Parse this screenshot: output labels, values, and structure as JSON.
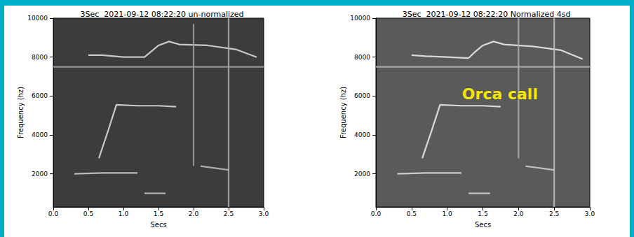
{
  "chart_data": [
    {
      "type": "line",
      "title": "3Sec  2021-09-12 08:22:20 un-normalized",
      "xlabel": "Secs",
      "ylabel": "Frequency (hz)",
      "xlim": [
        0,
        3
      ],
      "ylim": [
        300,
        10000
      ],
      "xticks": [
        {
          "value": 0,
          "label": "0.0"
        },
        0.5,
        {
          "value": 1,
          "label": "1.0"
        },
        1.5,
        {
          "value": 2,
          "label": "2.0"
        },
        2.5,
        {
          "value": 3,
          "label": "3.0"
        }
      ],
      "yticks": [
        2000,
        4000,
        6000,
        8000,
        10000
      ],
      "grid": false,
      "series": [
        {
          "color": "#e0e0e0",
          "line_style": "solid",
          "x": [
            0.5,
            0.7,
            1.0,
            1.3,
            1.4,
            1.5,
            1.65,
            1.8,
            2.2,
            2.6,
            2.9
          ],
          "values": [
            8100,
            8100,
            8000,
            8000,
            8300,
            8600,
            8800,
            8650,
            8600,
            8400,
            8000
          ]
        },
        {
          "color": "#e0e0e0",
          "line_style": "solid",
          "x": [
            0.65,
            0.78,
            0.9,
            1.2,
            1.5,
            1.75
          ],
          "values": [
            2800,
            4200,
            5550,
            5500,
            5500,
            5450
          ]
        },
        {
          "color": "#d0d0d0",
          "line_style": "solid",
          "x": [
            0.3,
            0.7,
            1.2
          ],
          "values": [
            2000,
            2050,
            2050
          ]
        },
        {
          "color": "#c8c8c8",
          "line_style": "solid",
          "x": [
            1.3,
            1.6
          ],
          "values": [
            1000,
            1000
          ]
        },
        {
          "color": "#c0c0c0",
          "line_style": "solid",
          "x": [
            2.1,
            2.3,
            2.5
          ],
          "values": [
            2400,
            2300,
            2200
          ]
        },
        {
          "color": "#a0a0a0",
          "line_style": "solid",
          "x": [
            0,
            3
          ],
          "values": [
            7500,
            7500
          ]
        },
        {
          "color": "#a0a0a0",
          "line_style": "solid",
          "x": [
            2,
            2
          ],
          "values": [
            2400,
            9700
          ]
        },
        {
          "color": "#b0b0b0",
          "line_style": "solid",
          "x": [
            2.5,
            2.5
          ],
          "values": [
            300,
            10000
          ]
        }
      ]
    },
    {
      "type": "line",
      "title": "3Sec  2021-09-12 08:22:20 Normalized 4sd",
      "xlabel": "Secs",
      "ylabel": "Frequency (hz)",
      "xlim": [
        0,
        3
      ],
      "ylim": [
        300,
        10000
      ],
      "xticks": [
        {
          "value": 0,
          "label": "0.0"
        },
        0.5,
        {
          "value": 1,
          "label": "1.0"
        },
        1.5,
        {
          "value": 2,
          "label": "2.0"
        },
        2.5,
        {
          "value": 3,
          "label": "3.0"
        }
      ],
      "yticks": [
        2000,
        4000,
        6000,
        8000,
        10000
      ],
      "grid": false,
      "annotations": [
        "Orca call"
      ],
      "series": [
        {
          "color": "#f0f0f0",
          "line_style": "solid",
          "x": [
            0.5,
            0.7,
            1.0,
            1.3,
            1.4,
            1.5,
            1.65,
            1.8,
            2.2,
            2.6,
            2.9
          ],
          "values": [
            8100,
            8050,
            8000,
            7950,
            8300,
            8600,
            8800,
            8650,
            8550,
            8350,
            7900
          ]
        },
        {
          "color": "#f0f0f0",
          "line_style": "solid",
          "x": [
            0.65,
            0.78,
            0.9,
            1.2,
            1.5,
            1.75
          ],
          "values": [
            2800,
            4200,
            5550,
            5500,
            5500,
            5450
          ]
        },
        {
          "color": "#e0e0e0",
          "line_style": "solid",
          "x": [
            0.3,
            0.7,
            1.2
          ],
          "values": [
            2000,
            2050,
            2050
          ]
        },
        {
          "color": "#d8d8d8",
          "line_style": "solid",
          "x": [
            1.3,
            1.6
          ],
          "values": [
            1000,
            1000
          ]
        },
        {
          "color": "#d0d0d0",
          "line_style": "solid",
          "x": [
            2.1,
            2.3,
            2.5
          ],
          "values": [
            2400,
            2300,
            2200
          ]
        },
        {
          "color": "#b0b0b0",
          "line_style": "solid",
          "x": [
            0,
            3
          ],
          "values": [
            7500,
            7500
          ]
        },
        {
          "color": "#b0b0b0",
          "line_style": "solid",
          "x": [
            2,
            2
          ],
          "values": [
            2800,
            10000
          ]
        },
        {
          "color": "#c0c0c0",
          "line_style": "solid",
          "x": [
            2.5,
            2.5
          ],
          "values": [
            300,
            10000
          ]
        }
      ]
    }
  ]
}
